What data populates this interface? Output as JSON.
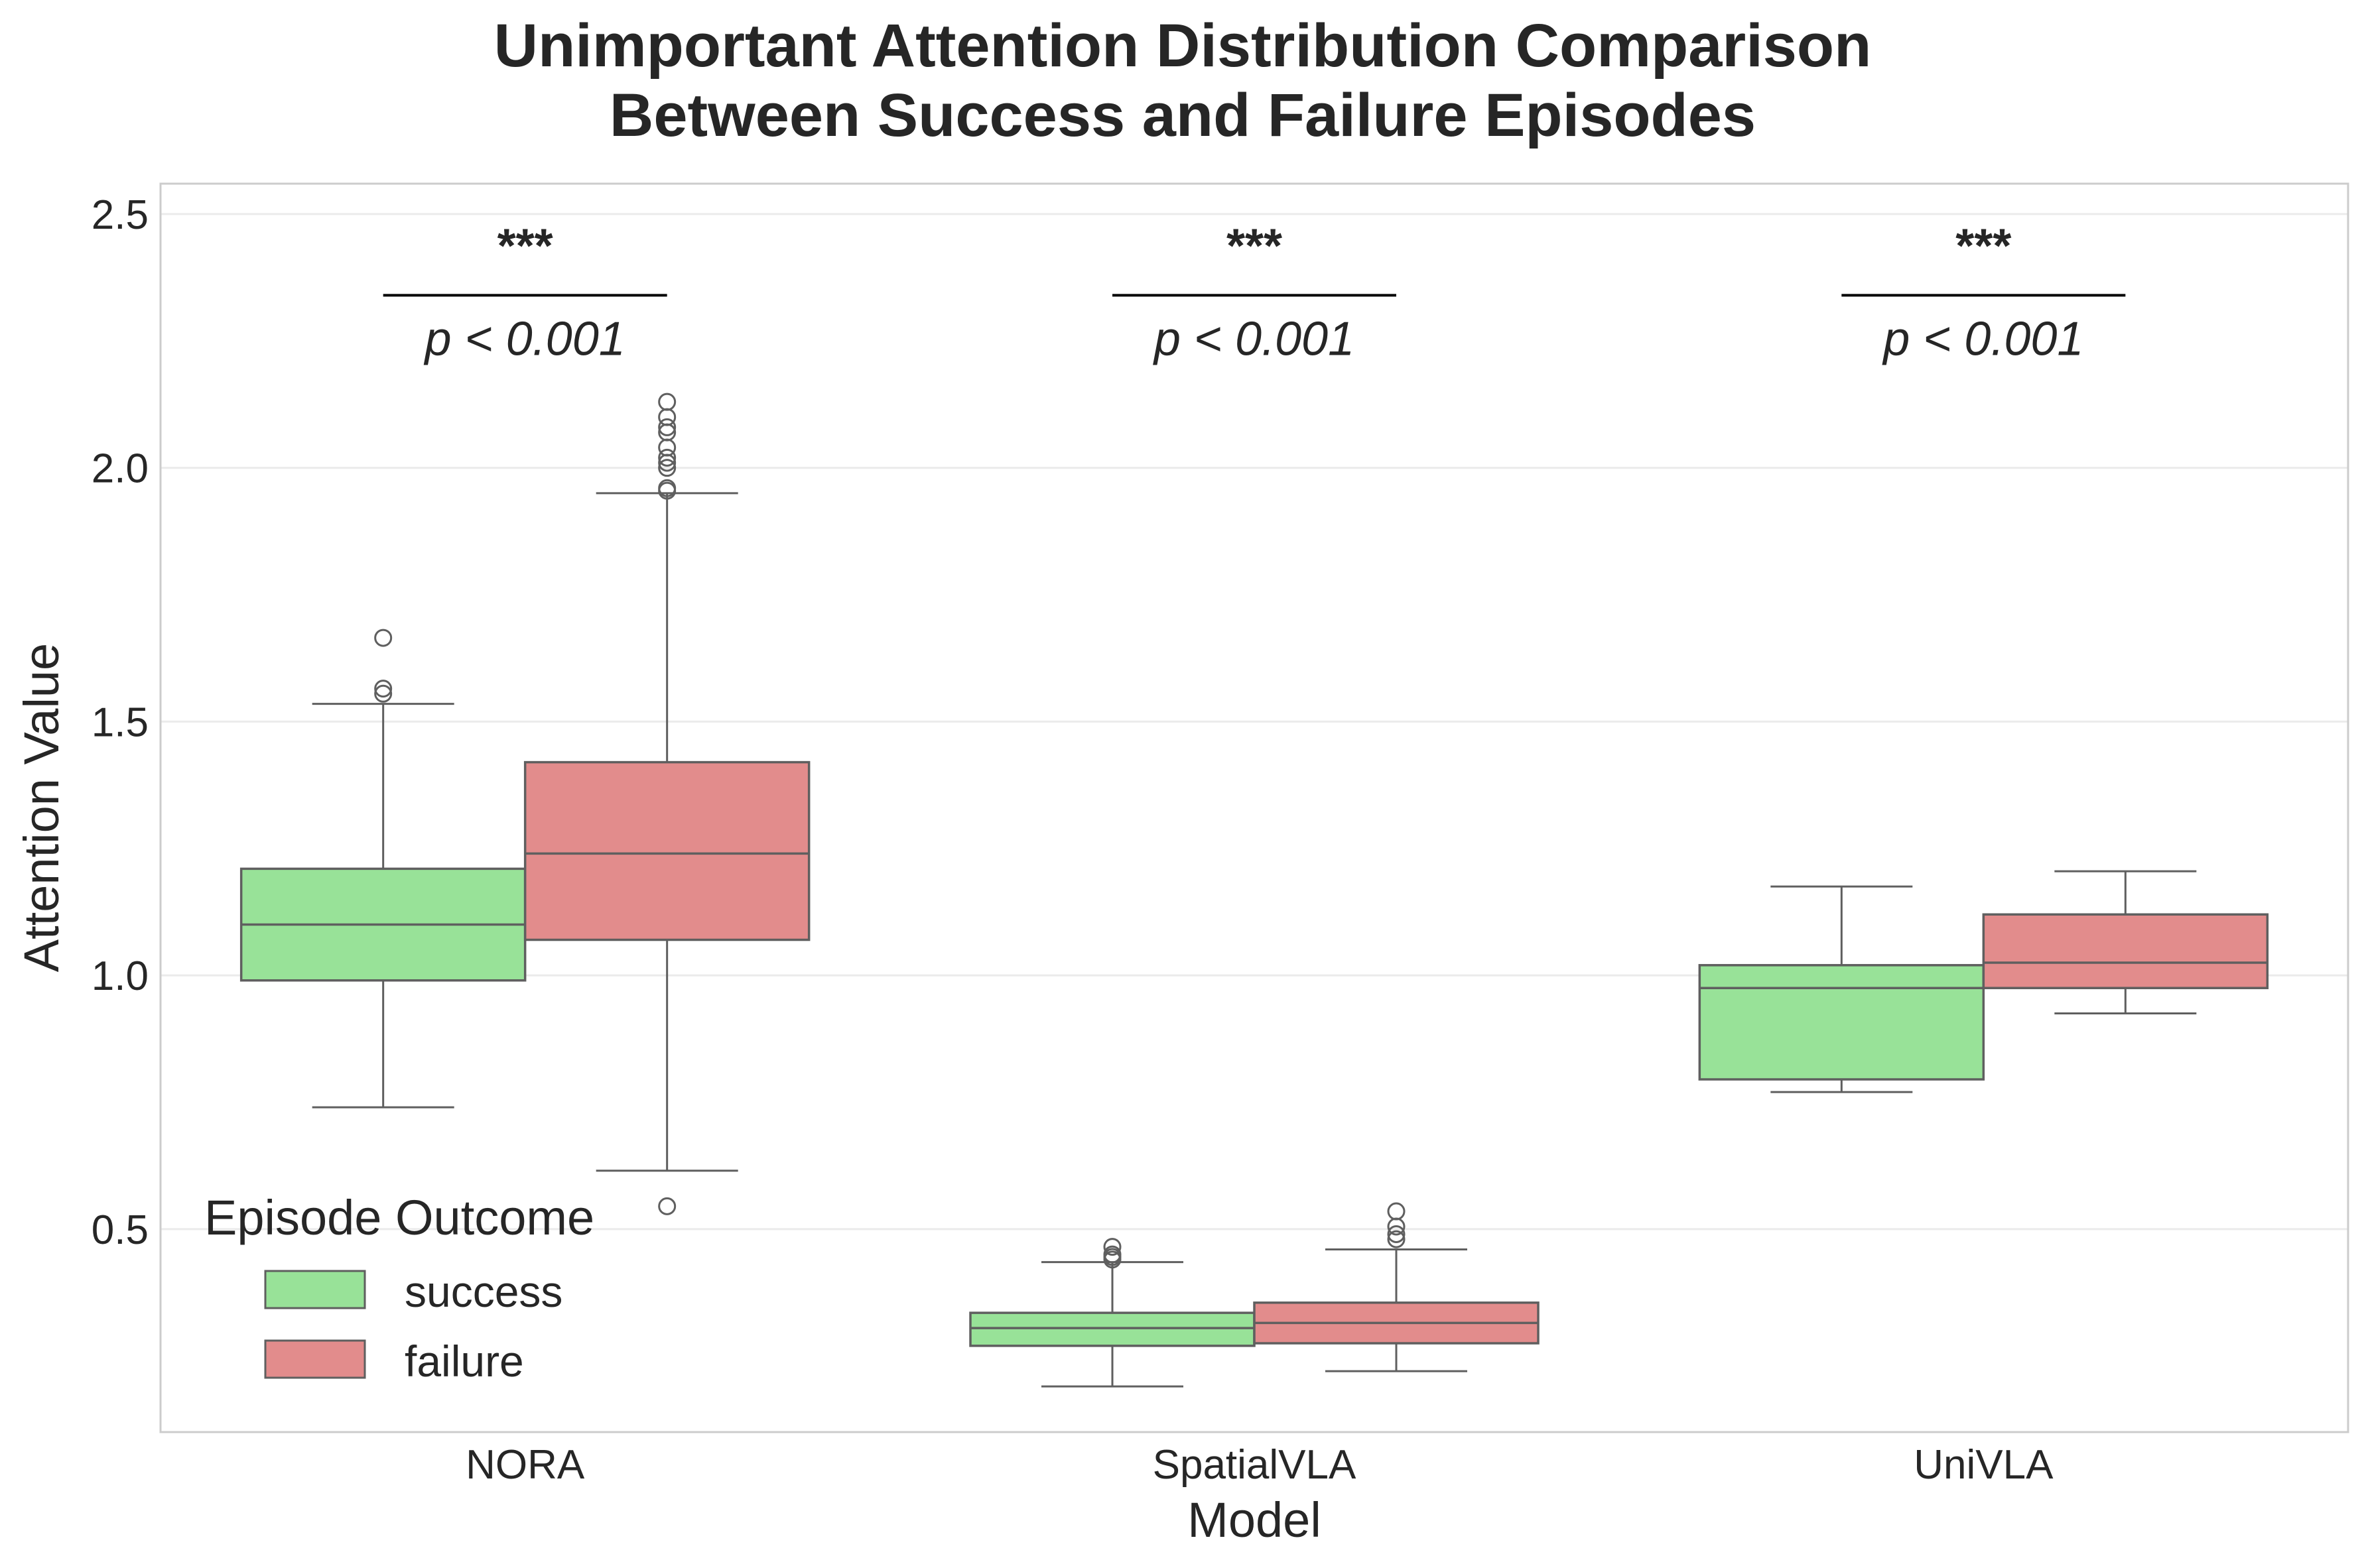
{
  "chart_data": {
    "type": "box",
    "title": "Unimportant Attention Distribution Comparison\nBetween Success and Failure Episodes",
    "title_lines": [
      "Unimportant Attention Distribution Comparison",
      "Between Success and Failure Episodes"
    ],
    "xlabel": "Model",
    "ylabel": "Attention Value",
    "ylim": [
      0.1,
      2.56
    ],
    "yticks": [
      0.5,
      1.0,
      1.5,
      2.0,
      2.5
    ],
    "ytick_labels": [
      "0.5",
      "1.0",
      "1.5",
      "2.0",
      "2.5"
    ],
    "categories": [
      "NORA",
      "SpatialVLA",
      "UniVLA"
    ],
    "grid": true,
    "legend": {
      "title": "Episode Outcome",
      "placement": "lower-left",
      "entries": [
        "success",
        "failure"
      ]
    },
    "colors": {
      "success": "#98e298",
      "failure": "#e28c8c",
      "box_edge": "#5f5f5f",
      "grid": "#ebebeb",
      "text": "#262626"
    },
    "series": [
      {
        "name": "success",
        "boxes": [
          {
            "category": "NORA",
            "whisker_low": 0.74,
            "q1": 0.99,
            "median": 1.1,
            "q3": 1.21,
            "whisker_high": 1.535,
            "outliers": [
              1.555,
              1.565,
              1.665
            ]
          },
          {
            "category": "SpatialVLA",
            "whisker_low": 0.19,
            "q1": 0.27,
            "median": 0.305,
            "q3": 0.335,
            "whisker_high": 0.435,
            "outliers": [
              0.44,
              0.445,
              0.45,
              0.465
            ]
          },
          {
            "category": "UniVLA",
            "whisker_low": 0.77,
            "q1": 0.795,
            "median": 0.975,
            "q3": 1.02,
            "whisker_high": 1.175,
            "outliers": []
          }
        ]
      },
      {
        "name": "failure",
        "boxes": [
          {
            "category": "NORA",
            "whisker_low": 0.615,
            "q1": 1.07,
            "median": 1.24,
            "q3": 1.42,
            "whisker_high": 1.95,
            "outliers": [
              0.545,
              1.955,
              1.96,
              2.0,
              2.01,
              2.02,
              2.04,
              2.07,
              2.08,
              2.1,
              2.13
            ]
          },
          {
            "category": "SpatialVLA",
            "whisker_low": 0.22,
            "q1": 0.275,
            "median": 0.315,
            "q3": 0.355,
            "whisker_high": 0.46,
            "outliers": [
              0.48,
              0.49,
              0.505,
              0.535
            ]
          },
          {
            "category": "UniVLA",
            "whisker_low": 0.925,
            "q1": 0.975,
            "median": 1.025,
            "q3": 1.12,
            "whisker_high": 1.205,
            "outliers": []
          }
        ]
      }
    ],
    "annotations": [
      {
        "category": "NORA",
        "stars": "***",
        "p_text": "p < 0.001",
        "line_y": 2.34
      },
      {
        "category": "SpatialVLA",
        "stars": "***",
        "p_text": "p < 0.001",
        "line_y": 2.34
      },
      {
        "category": "UniVLA",
        "stars": "***",
        "p_text": "p < 0.001",
        "line_y": 2.34
      }
    ]
  }
}
